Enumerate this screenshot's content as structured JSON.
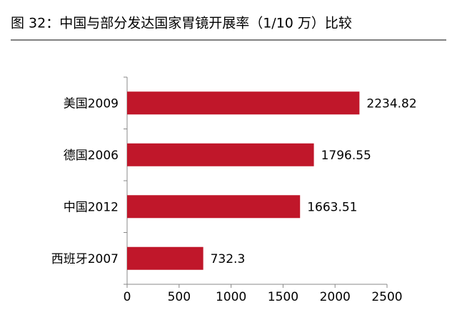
{
  "chart_data": {
    "type": "bar",
    "orientation": "horizontal",
    "title": "图 32：中国与部分发达国家胃镜开展率（1/10 万）比较",
    "categories": [
      "美国2009",
      "德国2006",
      "中国2012",
      "西班牙2007"
    ],
    "values": [
      2234.82,
      1796.55,
      1663.51,
      732.3
    ],
    "color": "#c0172a",
    "xlim": [
      0,
      2500
    ],
    "xticks": [
      0,
      500,
      1000,
      1500,
      2000,
      2500
    ]
  }
}
